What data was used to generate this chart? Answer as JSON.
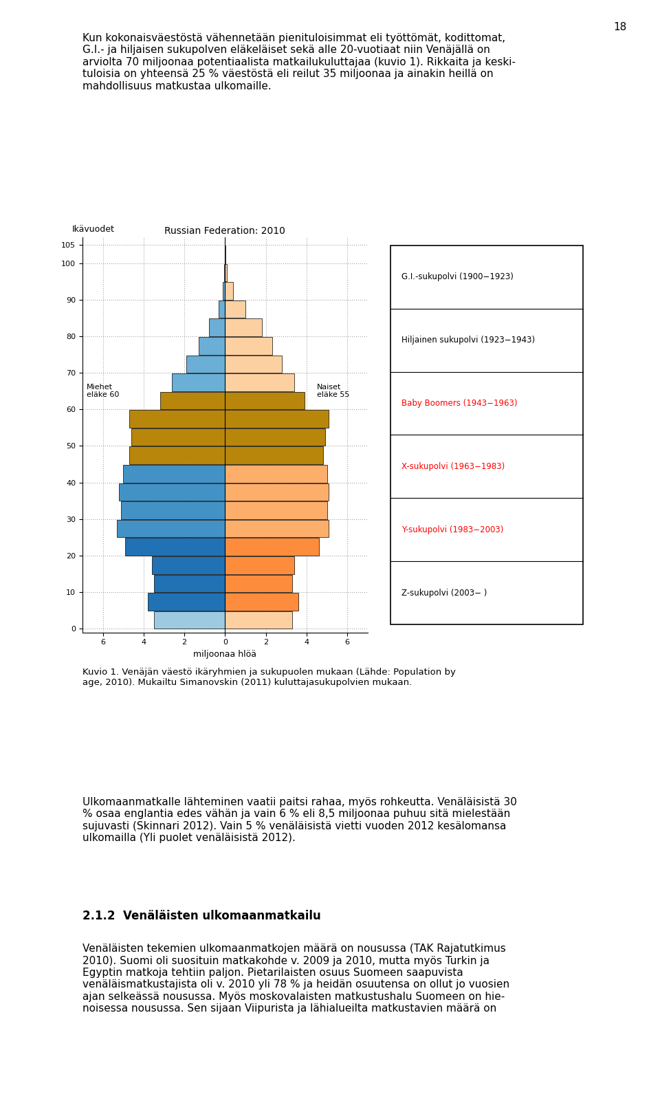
{
  "title": "Russian Federation: 2010",
  "ylabel": "Ikävuodet",
  "xlabel": "miljoonaa hlöä",
  "chart_title_fontsize": 10,
  "age_groups": [
    0,
    5,
    10,
    15,
    20,
    25,
    30,
    35,
    40,
    45,
    50,
    55,
    60,
    65,
    70,
    75,
    80,
    85,
    90,
    95,
    100
  ],
  "males": [
    3.5,
    3.8,
    3.5,
    3.6,
    4.9,
    5.2,
    5.1,
    5.2,
    5.0,
    4.8,
    4.6,
    4.7,
    3.2,
    2.6,
    1.9,
    1.3,
    0.8,
    0.3,
    0.1,
    0.05,
    0.01
  ],
  "females": [
    3.3,
    3.6,
    3.3,
    3.4,
    4.6,
    5.0,
    5.0,
    5.1,
    5.0,
    4.8,
    4.8,
    5.0,
    3.8,
    3.3,
    2.7,
    2.2,
    1.7,
    0.9,
    0.4,
    0.1,
    0.02
  ],
  "color_gi_male": "#6baed6",
  "color_gi_female": "#fdd0a2",
  "color_silent_male": "#6baed6",
  "color_silent_female": "#fdd0a2",
  "color_boomer_male": "#b8860b",
  "color_boomer_female": "#b8860b",
  "color_x_male": "#4292c6",
  "color_x_female": "#fdae6b",
  "color_y_male": "#2171b5",
  "color_y_female": "#fd8d3c",
  "color_z_male": "#9ecae1",
  "color_z_female": "#fdd0a2",
  "bar_height": 4.8,
  "xlim": 7,
  "ylim_max": 107,
  "page_text_top": "Kun kokonaisväestöstä vähennetään pienituloisimmat eli työttömät, kodittomat,\nG.I.- ja hiljaisen sukupolven eläkeläiset sekä alle 20-vuotiaat niin Venäjällä on\narviolta 70 miljoonaa potentiaalista matkailukuluttajaa (kuvio 1). Rikkaita ja keski-\ntuloisia on yhteensä 25 % väestöstä eli reilut 35 miljoonaa ja ainakin heillä on\nmahdollisuus matkustaa ulkomaille.",
  "caption": "Kuvio 1. Venäjän väestö ikäryhmien ja sukupuolen mukaan (Lähde: Population by\nage, 2010). Mukailtu Simanovskin (2011) kuluttajasukupolvien mukaan.",
  "body_text": "Ulkomaanmatkalle lähteminen vaatii paitsi rahaa, myös rohkeutta. Venäläisistä 30\n% osaa englantia edes vähän ja vain 6 % eli 8,5 miljoonaa puhuu sitä mielestään\nsujuvasti (Skinnari 2012). Vain 5 % venäläisistä vietti vuoden 2012 kesälomansa\nulkomailla (Yli puole venäläisistä 2012).",
  "section_header": "2.1.2  Venäläisten ulkomaanmatkailu",
  "body_text2": "Venäläisten tekemien ulkomaanmatkojen määrä on nousussa (TAK Rajatutkimus\n2010). Suomi oli suosituin matkakohde v. 2009 ja 2010, mutta myös Turkin ja\nEgyptin matkoja tehtiin paljon. Pietarilaisten osuus Suomeen saapuvista\nvenäläismatkustajista oli v. 2010 yli 78 % ja heidän osuutensa on ollut jo vuosien\najan selkeässä nousussa. Myös moskovalaisten matkustushalu Suomeen on hie-\nnoisessa nousussa. Sen sijaan Viipurista ja lähialueilta matkustavien määrä on",
  "page_number": "18",
  "legend_items": [
    {
      "label": "G.I.-sukupolvi (1900−1923)",
      "color": null,
      "text_color": "black"
    },
    {
      "label": "Hiljainen sukupolvi (1923−1943)",
      "color": null,
      "text_color": "black"
    },
    {
      "label": "Baby Boomers (1943−1963)",
      "color": null,
      "text_color": "red"
    },
    {
      "label": "X-sukupolvi (1963−1983)",
      "color": null,
      "text_color": "red"
    },
    {
      "label": "Y-sukupolvi (1983−2003)",
      "color": null,
      "text_color": "red"
    },
    {
      "label": "Z-sukupolvi (2003− )",
      "color": null,
      "text_color": "black"
    }
  ]
}
